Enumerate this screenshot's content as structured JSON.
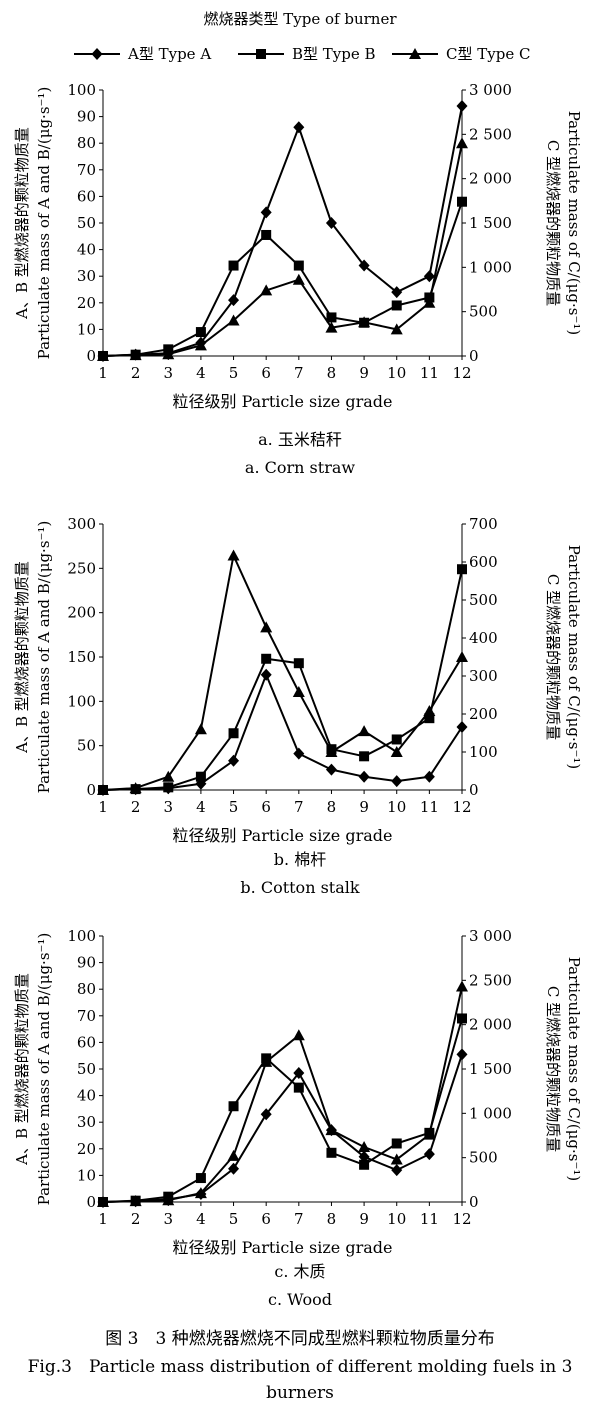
{
  "legend": {
    "title": "燃烧器类型 Type of burner",
    "entries": [
      {
        "label": "A型 Type A",
        "marker": "diamond"
      },
      {
        "label": "B型 Type B",
        "marker": "square"
      },
      {
        "label": "C型 Type C",
        "marker": "triangle"
      }
    ]
  },
  "figure": {
    "caption_cn": "图 3　3 种燃烧器燃烧不同成型燃料颗粒物质量分布",
    "caption_en": "Fig.3　Particle mass distribution of different molding fuels in 3 burners"
  },
  "chart_data": [
    {
      "type": "line",
      "subtitle_cn": "a. 玉米秸秆",
      "subtitle_en": "a. Corn straw",
      "xlabel": "粒径级别 Particle size grade",
      "ylabel_left_cn": "A、B 型燃烧器的颗粒物质量",
      "ylabel_left_en": "Particulate mass of A and B/(μg·s⁻¹)",
      "ylabel_right_cn": "C 型燃烧器的颗粒物质量",
      "ylabel_right_en": "Particulate mass of C/(μg·s⁻¹)",
      "x": [
        1,
        2,
        3,
        4,
        5,
        6,
        7,
        8,
        9,
        10,
        11,
        12
      ],
      "ylim_left": [
        0,
        100
      ],
      "yticks_left": [
        "0",
        "10",
        "20",
        "30",
        "40",
        "50",
        "60",
        "70",
        "80",
        "90",
        "100"
      ],
      "ylim_right": [
        0,
        3000
      ],
      "yticks_right": [
        "0",
        "500",
        "1 000",
        "1 500",
        "2 000",
        "2 500",
        "3 000"
      ],
      "series": [
        {
          "name": "A型 Type A",
          "axis": "left",
          "marker": "diamond",
          "values": [
            0,
            0.5,
            1,
            5,
            21,
            54,
            86,
            50,
            34,
            24,
            30,
            94
          ]
        },
        {
          "name": "B型 Type B",
          "axis": "left",
          "marker": "square",
          "values": [
            0,
            0.5,
            2.5,
            9,
            34,
            45.5,
            34,
            14.5,
            12.5,
            19,
            22,
            58
          ]
        },
        {
          "name": "C型 Type C",
          "axis": "right",
          "marker": "triangle",
          "values": [
            0,
            10,
            20,
            120,
            400,
            740,
            860,
            320,
            380,
            300,
            600,
            2400
          ]
        }
      ]
    },
    {
      "type": "line",
      "subtitle_cn": "b. 棉杆",
      "subtitle_en": "b. Cotton stalk",
      "xlabel": "粒径级别 Particle size grade",
      "ylabel_left_cn": "A、B 型燃烧器的颗粒物质量",
      "ylabel_left_en": "Particulate mass of A and B/(μg·s⁻¹)",
      "ylabel_right_cn": "C 型燃烧器的颗粒物质量",
      "ylabel_right_en": "Particulate mass of C/(μg·s⁻¹)",
      "x": [
        1,
        2,
        3,
        4,
        5,
        6,
        7,
        8,
        9,
        10,
        11,
        12
      ],
      "ylim_left": [
        0,
        300
      ],
      "yticks_left": [
        "0",
        "50",
        "100",
        "150",
        "200",
        "250",
        "300"
      ],
      "ylim_right": [
        0,
        700
      ],
      "yticks_right": [
        "0",
        "100",
        "200",
        "300",
        "400",
        "500",
        "600",
        "700"
      ],
      "series": [
        {
          "name": "A型 Type A",
          "axis": "left",
          "marker": "diamond",
          "values": [
            0,
            1,
            2,
            7,
            33,
            130,
            41,
            23,
            15,
            10,
            15,
            71
          ]
        },
        {
          "name": "B型 Type B",
          "axis": "left",
          "marker": "square",
          "values": [
            0,
            1,
            3,
            15,
            64,
            148,
            143,
            46,
            38,
            57,
            81,
            249
          ]
        },
        {
          "name": "C型 Type C",
          "axis": "right",
          "marker": "triangle",
          "values": [
            0,
            5,
            35,
            160,
            617,
            428,
            258,
            100,
            155,
            100,
            208,
            350
          ]
        }
      ]
    },
    {
      "type": "line",
      "subtitle_cn": "c. 木质",
      "subtitle_en": "c. Wood",
      "xlabel": "粒径级别 Particle size grade",
      "ylabel_left_cn": "A、B 型燃烧器的颗粒物质量",
      "ylabel_left_en": "Particulate mass of A and B/(μg·s⁻¹)",
      "ylabel_right_cn": "C 型燃烧器的颗粒物质量",
      "ylabel_right_en": "Particulate mass of C/(μg·s⁻¹)",
      "x": [
        1,
        2,
        3,
        4,
        5,
        6,
        7,
        8,
        9,
        10,
        11,
        12
      ],
      "ylim_left": [
        0,
        100
      ],
      "yticks_left": [
        "0",
        "10",
        "20",
        "30",
        "40",
        "50",
        "60",
        "70",
        "80",
        "90",
        "100"
      ],
      "ylim_right": [
        0,
        3000
      ],
      "yticks_right": [
        "0",
        "500",
        "1 000",
        "1 500",
        "2 000",
        "2 500",
        "3 000"
      ],
      "series": [
        {
          "name": "A型 Type A",
          "axis": "left",
          "marker": "diamond",
          "values": [
            0,
            0.3,
            1,
            3,
            12.5,
            33,
            48.5,
            27,
            17,
            12,
            18,
            55.5
          ]
        },
        {
          "name": "B型 Type B",
          "axis": "left",
          "marker": "square",
          "values": [
            0,
            0.5,
            2,
            9,
            36,
            54,
            43,
            18.5,
            14,
            22,
            26,
            69
          ]
        },
        {
          "name": "C型 Type C",
          "axis": "right",
          "marker": "triangle",
          "values": [
            0,
            10,
            20,
            100,
            520,
            1580,
            1880,
            810,
            620,
            480,
            760,
            2430
          ]
        }
      ]
    }
  ]
}
